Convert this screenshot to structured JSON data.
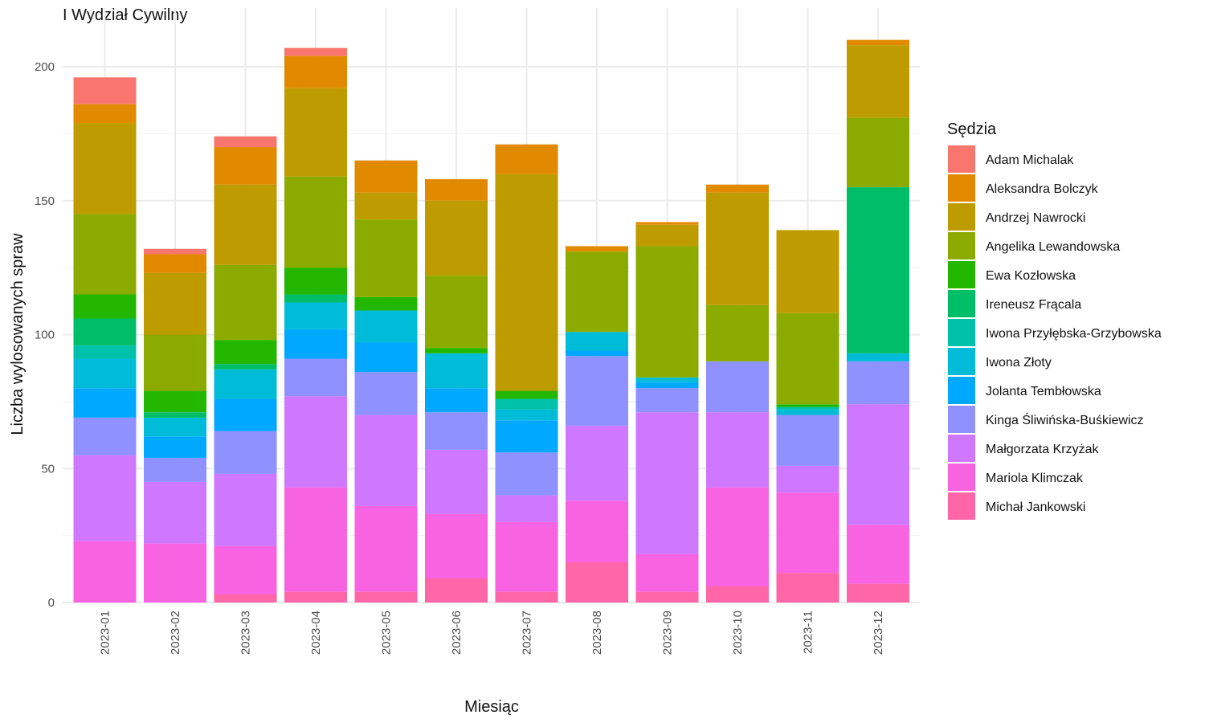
{
  "chart_data": {
    "type": "bar",
    "stacked": true,
    "title": "I Wydział Cywilny",
    "xlabel": "Miesiąc",
    "ylabel": "Liczba wylosowanych spraw",
    "ylim": [
      0,
      215
    ],
    "yticks": [
      0,
      50,
      100,
      150,
      200
    ],
    "grid": true,
    "legend_title": "Sędzia",
    "legend_position": "right",
    "categories": [
      "2023-01",
      "2023-02",
      "2023-03",
      "2023-04",
      "2023-05",
      "2023-06",
      "2023-07",
      "2023-08",
      "2023-09",
      "2023-10",
      "2023-11",
      "2023-12"
    ],
    "series": [
      {
        "name": "Michał Jankowski",
        "color": "#FF66A8",
        "values": [
          0,
          0,
          3,
          4,
          4,
          9,
          4,
          15,
          4,
          6,
          11,
          7
        ]
      },
      {
        "name": "Mariola Klimczak",
        "color": "#F763E0",
        "values": [
          23,
          22,
          18,
          39,
          32,
          24,
          26,
          23,
          14,
          37,
          30,
          22
        ]
      },
      {
        "name": "Małgorzata Krzyżak",
        "color": "#CF78FF",
        "values": [
          32,
          23,
          27,
          34,
          34,
          24,
          10,
          28,
          53,
          28,
          10,
          45
        ]
      },
      {
        "name": "Kinga Śliwińska-Buśkiewicz",
        "color": "#8F91FF",
        "values": [
          14,
          9,
          16,
          14,
          16,
          14,
          16,
          26,
          9,
          19,
          19,
          16
        ]
      },
      {
        "name": "Jolanta Tembłowska",
        "color": "#00A9FF",
        "values": [
          11,
          8,
          12,
          11,
          11,
          9,
          12,
          2,
          2,
          0,
          0,
          0
        ]
      },
      {
        "name": "Iwona Złoty",
        "color": "#00BCD8",
        "values": [
          11,
          7,
          11,
          10,
          12,
          13,
          4,
          7,
          2,
          0,
          2,
          3
        ]
      },
      {
        "name": "Iwona Przyłębska-Grzybowska",
        "color": "#00C1A9",
        "values": [
          5,
          0,
          0,
          0,
          0,
          0,
          4,
          0,
          0,
          0,
          1,
          0
        ]
      },
      {
        "name": "Ireneusz Frącala",
        "color": "#00BE67",
        "values": [
          10,
          2,
          2,
          3,
          0,
          0,
          0,
          0,
          0,
          0,
          0,
          62
        ]
      },
      {
        "name": "Ewa Kozłowska",
        "color": "#24B700",
        "values": [
          9,
          8,
          9,
          10,
          5,
          2,
          3,
          0,
          0,
          0,
          1,
          0
        ]
      },
      {
        "name": "Angelika Lewandowska",
        "color": "#8CAB00",
        "values": [
          30,
          21,
          28,
          34,
          29,
          27,
          0,
          30,
          49,
          21,
          34,
          26
        ]
      },
      {
        "name": "Andrzej Nawrocki",
        "color": "#BE9C00",
        "values": [
          34,
          23,
          30,
          33,
          10,
          28,
          81,
          0,
          8,
          42,
          31,
          27
        ]
      },
      {
        "name": "Aleksandra Bolczyk",
        "color": "#E18A00",
        "values": [
          7,
          7,
          14,
          12,
          12,
          8,
          11,
          2,
          1,
          3,
          0,
          2
        ]
      },
      {
        "name": "Adam Michalak",
        "color": "#F8766D",
        "values": [
          10,
          2,
          4,
          3,
          0,
          0,
          0,
          0,
          0,
          0,
          0,
          0
        ]
      }
    ],
    "legend_order": [
      "Adam Michalak",
      "Aleksandra Bolczyk",
      "Andrzej Nawrocki",
      "Angelika Lewandowska",
      "Ewa Kozłowska",
      "Ireneusz Frącala",
      "Iwona Przyłębska-Grzybowska",
      "Iwona Złoty",
      "Jolanta Tembłowska",
      "Kinga Śliwińska-Buśkiewicz",
      "Małgorzata Krzyżak",
      "Mariola Klimczak",
      "Michał Jankowski"
    ]
  }
}
